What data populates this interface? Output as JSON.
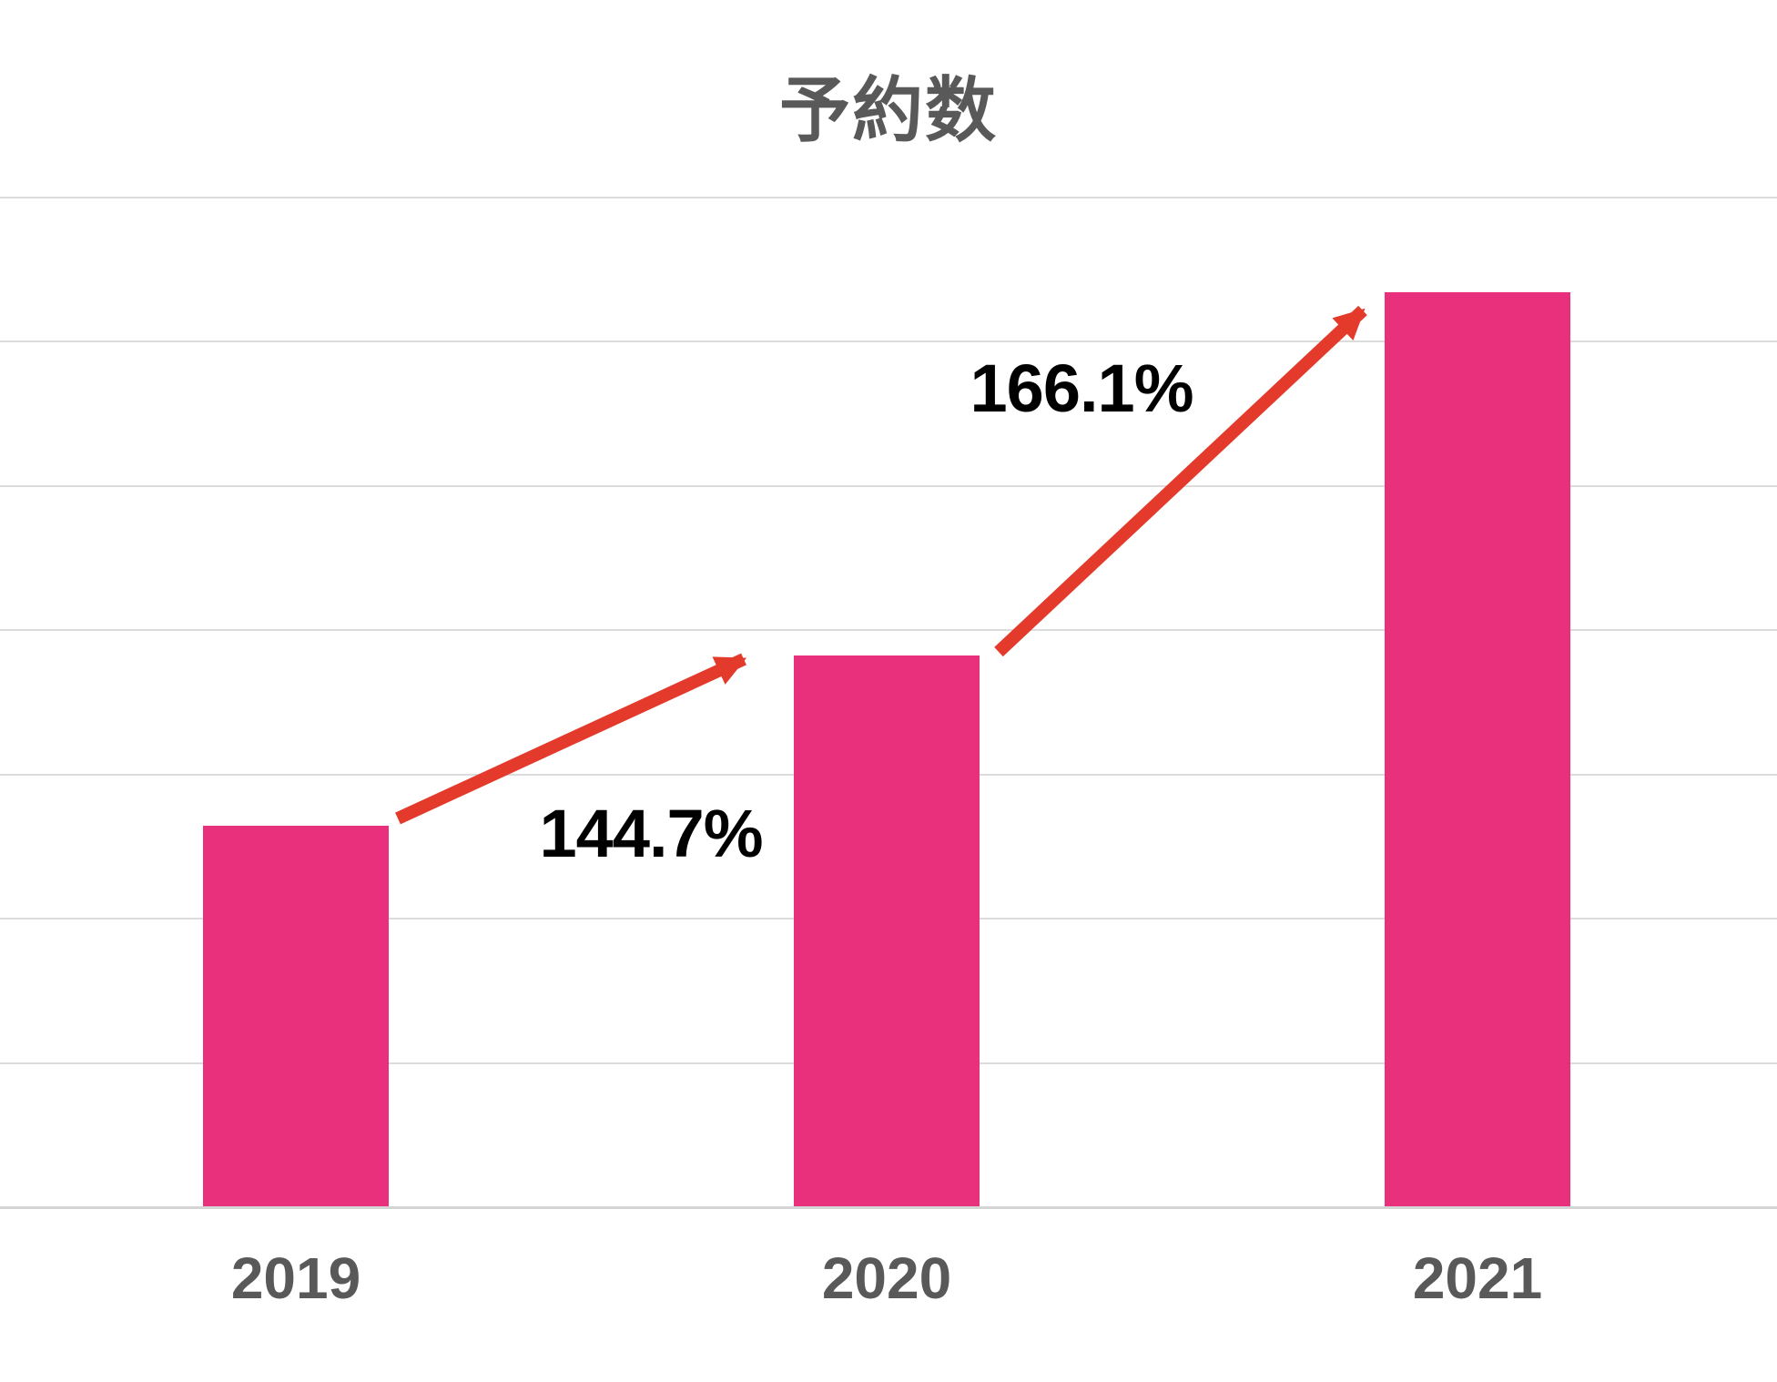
{
  "title": "予約数",
  "chart_data": {
    "type": "bar",
    "title": "予約数",
    "categories": [
      "2019",
      "2020",
      "2021"
    ],
    "series": [
      {
        "name": "予約数",
        "values": [
          100,
          144.7,
          240.3
        ]
      }
    ],
    "values_note": "relative index, 2019 = 100 (no numeric y-axis labels are shown in the chart)",
    "growth_annotations": [
      {
        "from": "2019",
        "to": "2020",
        "label": "144.7%"
      },
      {
        "from": "2020",
        "to": "2021",
        "label": "166.1%"
      }
    ],
    "xlabel": "",
    "ylabel": "",
    "y_axis_labels_visible": false,
    "gridlines": true,
    "gridline_count": 8,
    "legend": "none",
    "colors": {
      "bar": "#E9307C",
      "arrow": "#E43A2B",
      "gridline": "#DCDCDC",
      "baseline": "#D4D4D4",
      "axis_label": "#595959",
      "title": "#595959",
      "annotation_text": "#000000",
      "background": "#FFFFFF"
    }
  }
}
